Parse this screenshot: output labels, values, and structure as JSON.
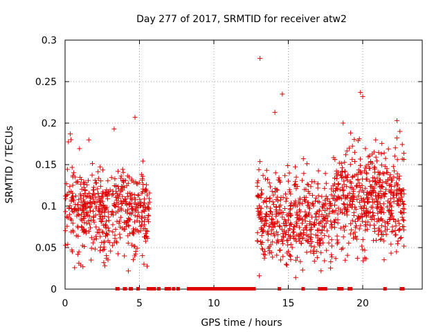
{
  "chart_data": {
    "type": "scatter",
    "title": "Day 277 of 2017, SRMTID for receiver atw2",
    "xlabel": "GPS time / hours",
    "ylabel": "SRMTID / TECUs",
    "xlim": [
      0,
      24
    ],
    "ylim": [
      0,
      0.3
    ],
    "xticks": [
      0,
      5,
      10,
      15,
      20
    ],
    "xtick_labels": [
      "0",
      "5",
      "10",
      "15",
      "20"
    ],
    "yticks": [
      0,
      0.05,
      0.1,
      0.15,
      0.2,
      0.25,
      0.3
    ],
    "ytick_labels": [
      "0",
      "0.05",
      "0.1",
      "0.15",
      "0.2",
      "0.25",
      "0.3"
    ],
    "grid": true,
    "marker": "+",
    "color": "#dd0000",
    "segments": [
      {
        "x_start": 0.0,
        "x_end": 5.7,
        "y_mean": 0.095,
        "y_spread": 0.035,
        "count": 520
      },
      {
        "x_start": 12.9,
        "x_end": 18.0,
        "y_mean": 0.085,
        "y_spread": 0.035,
        "count": 460
      },
      {
        "x_start": 18.0,
        "x_end": 22.8,
        "y_mean": 0.11,
        "y_spread": 0.04,
        "count": 520
      }
    ],
    "notable_points": [
      {
        "x": 13.1,
        "y": 0.278
      },
      {
        "x": 14.6,
        "y": 0.235
      },
      {
        "x": 19.85,
        "y": 0.237
      },
      {
        "x": 20.0,
        "y": 0.232
      },
      {
        "x": 14.1,
        "y": 0.213
      },
      {
        "x": 4.7,
        "y": 0.207
      },
      {
        "x": 3.3,
        "y": 0.193
      },
      {
        "x": 0.35,
        "y": 0.187
      },
      {
        "x": 0.4,
        "y": 0.18
      },
      {
        "x": 22.3,
        "y": 0.203
      },
      {
        "x": 22.5,
        "y": 0.19
      },
      {
        "x": 1.2,
        "y": 0.027
      },
      {
        "x": 2.6,
        "y": 0.032
      },
      {
        "x": 13.05,
        "y": 0.016
      },
      {
        "x": 15.5,
        "y": 0.014
      },
      {
        "x": 17.2,
        "y": 0.022
      },
      {
        "x": 5.3,
        "y": 0.03
      }
    ],
    "zero_points_x": [
      3.5,
      3.55,
      4.0,
      4.05,
      4.4,
      4.45,
      4.9,
      5.6,
      5.8,
      5.85,
      6.0,
      6.3,
      6.8,
      7.0,
      7.3,
      7.6,
      8.3,
      8.5,
      8.7,
      8.9,
      9.0,
      9.1,
      9.2,
      9.3,
      9.4,
      9.5,
      9.6,
      9.7,
      9.8,
      9.9,
      10.1,
      10.3,
      10.4,
      10.5,
      10.6,
      10.7,
      10.8,
      10.9,
      11.0,
      11.1,
      11.2,
      11.3,
      11.4,
      11.5,
      11.6,
      11.7,
      11.8,
      11.9,
      12.0,
      12.1,
      12.2,
      12.3,
      12.4,
      12.5,
      12.6,
      12.7,
      14.4,
      16.0,
      17.1,
      17.3,
      17.5,
      18.4,
      18.6,
      19.1,
      19.2,
      21.5,
      22.6,
      22.7
    ]
  }
}
